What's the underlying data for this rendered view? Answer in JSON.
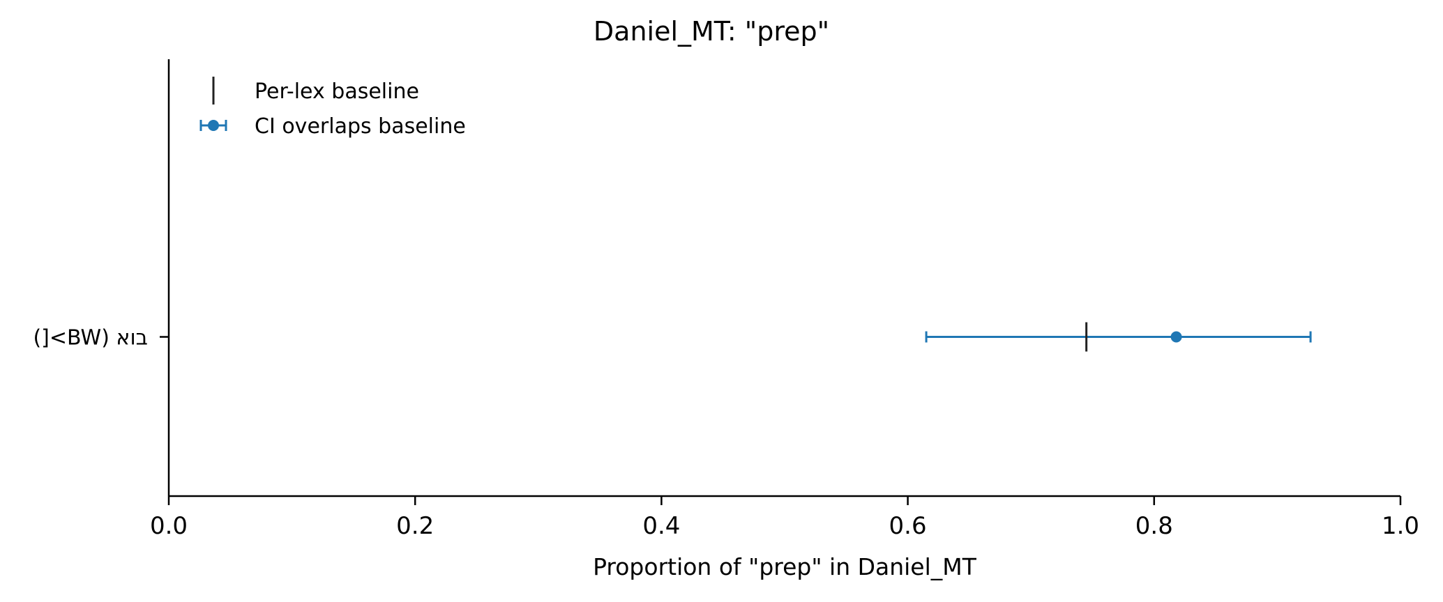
{
  "chart_data": {
    "type": "scatter",
    "title": "Daniel_MT: \"prep\"",
    "xlabel": "Proportion of \"prep\" in Daniel_MT",
    "ylabel": "",
    "xlim": [
      0.0,
      1.0
    ],
    "x_ticks": [
      0.0,
      0.2,
      0.4,
      0.6,
      0.8,
      1.0
    ],
    "x_tick_labels": [
      "0.0",
      "0.2",
      "0.4",
      "0.6",
      "0.8",
      "1.0"
    ],
    "categories": [
      "בוא (BW>[)"
    ],
    "series": [
      {
        "name": "CI overlaps baseline",
        "color": "#1f77b4",
        "points": [
          {
            "category": "בוא (BW>[)",
            "x": 0.818,
            "ci_low": 0.615,
            "ci_high": 0.927
          }
        ]
      }
    ],
    "baselines": [
      {
        "category": "בוא (BW>[)",
        "x": 0.745
      }
    ],
    "baseline_color": "#222222",
    "legend": {
      "placement": "top-left",
      "entries": [
        {
          "label": "Per-lex baseline",
          "marker": "vline"
        },
        {
          "label": "CI overlaps baseline",
          "marker": "errorbar-point"
        }
      ]
    },
    "grid": false
  }
}
